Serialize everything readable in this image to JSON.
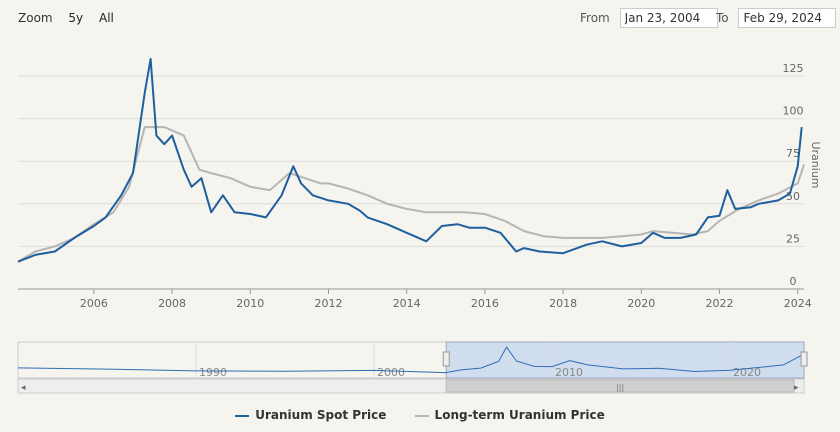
{
  "zoom": {
    "label": "Zoom",
    "options": [
      "5y",
      "All"
    ]
  },
  "range": {
    "from_label": "From",
    "from_value": "Jan 23, 2004",
    "to_label": "To",
    "to_value": "Feb 29, 2024"
  },
  "colors": {
    "spot": "#1f5f9e",
    "longterm": "#b5b5b5",
    "navigator_fill": "#c7d7ee",
    "grid": "#dddddd"
  },
  "chart_data": {
    "type": "line",
    "ylabel": "Uranium",
    "ylim": [
      0,
      125
    ],
    "yticks": [
      0,
      25,
      50,
      75,
      100,
      125
    ],
    "xlim": [
      2004.06,
      2024.16
    ],
    "xticks": [
      2006,
      2008,
      2010,
      2012,
      2014,
      2016,
      2018,
      2020,
      2022,
      2024
    ],
    "series": [
      {
        "name": "Uranium Spot Price",
        "color": "#1f5f9e",
        "x": [
          2004.06,
          2004.5,
          2005,
          2005.5,
          2006,
          2006.3,
          2006.7,
          2007,
          2007.3,
          2007.45,
          2007.6,
          2007.8,
          2008,
          2008.3,
          2008.5,
          2008.75,
          2009,
          2009.3,
          2009.6,
          2010,
          2010.4,
          2010.8,
          2011.1,
          2011.3,
          2011.6,
          2012,
          2012.5,
          2012.8,
          2013,
          2013.5,
          2014,
          2014.5,
          2014.9,
          2015.3,
          2015.6,
          2016,
          2016.4,
          2016.8,
          2017,
          2017.4,
          2018,
          2018.6,
          2019,
          2019.5,
          2020,
          2020.3,
          2020.6,
          2021,
          2021.4,
          2021.7,
          2022,
          2022.2,
          2022.4,
          2022.8,
          2023,
          2023.5,
          2023.8,
          2024,
          2024.1
        ],
        "values": [
          16,
          20,
          22,
          30,
          37,
          42,
          55,
          68,
          115,
          135,
          90,
          85,
          90,
          70,
          60,
          65,
          45,
          55,
          45,
          44,
          42,
          55,
          72,
          62,
          55,
          52,
          50,
          46,
          42,
          38,
          33,
          28,
          37,
          38,
          36,
          36,
          33,
          22,
          24,
          22,
          21,
          26,
          28,
          25,
          27,
          33,
          30,
          30,
          32,
          42,
          43,
          58,
          47,
          48,
          50,
          52,
          56,
          72,
          95
        ]
      },
      {
        "name": "Long-term Uranium Price",
        "color": "#b5b5b5",
        "x": [
          2004.06,
          2004.5,
          2005,
          2005.5,
          2006,
          2006.5,
          2006.9,
          2007.3,
          2007.8,
          2008.3,
          2008.7,
          2009,
          2009.5,
          2010,
          2010.5,
          2011,
          2011.4,
          2011.8,
          2012,
          2012.5,
          2013,
          2013.5,
          2014,
          2014.5,
          2015,
          2015.5,
          2016,
          2016.5,
          2017,
          2017.5,
          2018,
          2018.5,
          2019,
          2019.5,
          2020,
          2020.3,
          2020.8,
          2021.3,
          2021.7,
          2022,
          2022.5,
          2023,
          2023.5,
          2024,
          2024.16
        ],
        "values": [
          16,
          22,
          25,
          30,
          38,
          45,
          60,
          95,
          95,
          90,
          70,
          68,
          65,
          60,
          58,
          68,
          65,
          62,
          62,
          59,
          55,
          50,
          47,
          45,
          45,
          45,
          44,
          40,
          34,
          31,
          30,
          30,
          30,
          31,
          32,
          34,
          33,
          32,
          34,
          40,
          47,
          52,
          56,
          62,
          73
        ]
      }
    ]
  },
  "navigator": {
    "xticks": [
      1990,
      2000,
      2010,
      2020
    ],
    "xlim": [
      1980,
      2024.16
    ],
    "selection": [
      2004.06,
      2024.16
    ],
    "x": [
      1980,
      1985,
      1990,
      1995,
      2000,
      2004,
      2005,
      2006,
      2007,
      2007.45,
      2008,
      2009,
      2010,
      2011,
      2012,
      2014,
      2016,
      2018,
      2020,
      2022,
      2023,
      2024
    ],
    "values": [
      38,
      32,
      24,
      22,
      26,
      16,
      30,
      37,
      68,
      135,
      70,
      45,
      44,
      72,
      52,
      33,
      36,
      21,
      27,
      43,
      52,
      95
    ]
  }
}
